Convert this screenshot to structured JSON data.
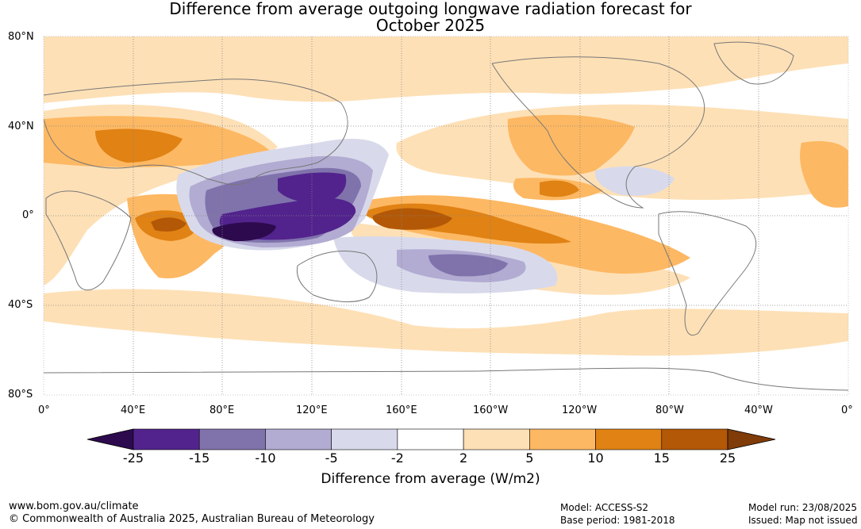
{
  "title_line1": "Difference from average outgoing longwave radiation forecast for",
  "title_line2": "October 2025",
  "lat_labels": [
    "80°N",
    "40°N",
    "0°",
    "40°S",
    "80°S"
  ],
  "lon_labels": [
    "0°",
    "40°E",
    "80°E",
    "120°E",
    "160°E",
    "160°W",
    "120°W",
    "80°W",
    "40°W",
    "0°"
  ],
  "colorbar": {
    "ticks": [
      "-25",
      "-15",
      "-10",
      "-5",
      "-2",
      "2",
      "5",
      "10",
      "15",
      "25"
    ],
    "colors": [
      "#2d0a4e",
      "#52238d",
      "#8073ac",
      "#b2abd2",
      "#d8daeb",
      "#ffffff",
      "#fee0b6",
      "#fdb863",
      "#e08214",
      "#b35806",
      "#7f3b08"
    ],
    "label": "Difference from average (W/m2)"
  },
  "footer": {
    "url": "www.bom.gov.au/climate",
    "copyright": "© Commonwealth of Australia 2025, Australian Bureau of Meteorology",
    "model": "Model: ACCESS-S2",
    "base_period": "Base period: 1981-2018",
    "model_run": "Model run: 23/08/2025",
    "issued": "Issued: Map not issued"
  }
}
